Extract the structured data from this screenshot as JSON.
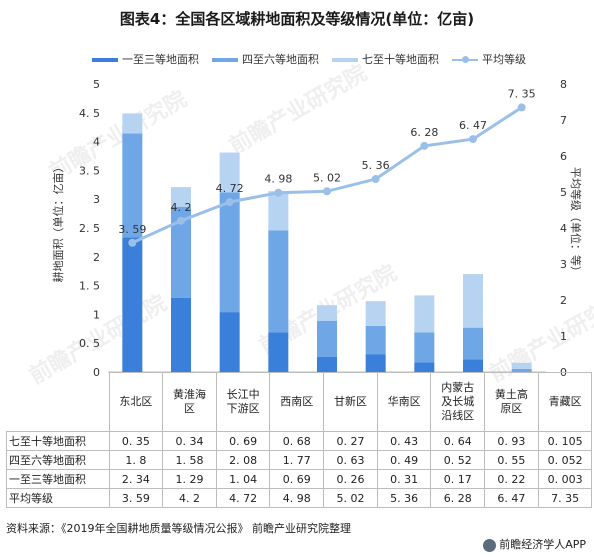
{
  "title": "图表4：全国各区域耕地面积及等级情况(单位：亿亩)",
  "legend": [
    {
      "label": "一至三等地面积",
      "color": "#3a7fd9"
    },
    {
      "label": "四至六等地面积",
      "color": "#6ea6e6"
    },
    {
      "label": "七至十等地面积",
      "color": "#b7d3f2"
    },
    {
      "label": "平均等级",
      "color": "#9ac0ea"
    }
  ],
  "chart_data": {
    "type": "bar",
    "stacked": true,
    "categories": [
      "东北区",
      "黄淮海区",
      "长江中下游区",
      "西南区",
      "甘新区",
      "华南区",
      "内蒙古及长城沿线区",
      "黄土高原区",
      "青藏区"
    ],
    "category_lines": [
      [
        "东北区"
      ],
      [
        "黄淮海",
        "区"
      ],
      [
        "长江中",
        "下游区"
      ],
      [
        "西南区"
      ],
      [
        "甘新区"
      ],
      [
        "华南区"
      ],
      [
        "内蒙古",
        "及长城",
        "沿线区"
      ],
      [
        "黄土高",
        "原区"
      ],
      [
        "青藏区"
      ]
    ],
    "series": [
      {
        "name": "一至三等地面积",
        "color": "#3a7fd9",
        "values": [
          2.34,
          1.29,
          1.04,
          0.69,
          0.26,
          0.31,
          0.17,
          0.22,
          0.003
        ]
      },
      {
        "name": "四至六等地面积",
        "color": "#6ea6e6",
        "values": [
          1.8,
          1.58,
          2.08,
          1.77,
          0.63,
          0.49,
          0.52,
          0.55,
          0.052
        ]
      },
      {
        "name": "七至十等地面积",
        "color": "#b7d3f2",
        "values": [
          0.35,
          0.34,
          0.69,
          0.68,
          0.27,
          0.43,
          0.64,
          0.93,
          0.105
        ]
      }
    ],
    "line_series": {
      "name": "平均等级",
      "color": "#9ac0ea",
      "values": [
        3.59,
        4.2,
        4.72,
        4.98,
        5.02,
        5.36,
        6.28,
        6.47,
        7.35
      ]
    },
    "ylabel": "耕地面积（单位：亿亩）",
    "y2label": "平均等级（单位：等）",
    "ylim": [
      0,
      5
    ],
    "y2lim": [
      0,
      8
    ],
    "yticks": [
      "0",
      "0. 5",
      "1",
      "1. 5",
      "2",
      "2. 5",
      "3",
      "3. 5",
      "4",
      "4. 5",
      "5"
    ],
    "y2ticks": [
      "0",
      "1",
      "2",
      "3",
      "4",
      "5",
      "6",
      "7",
      "8"
    ],
    "line_labels": [
      "3. 59",
      "4. 2",
      "4. 72",
      "4. 98",
      "5. 02",
      "5. 36",
      "6. 28",
      "6. 47",
      "7. 35"
    ],
    "table": {
      "rows": [
        {
          "label": "七至十等地面积",
          "cells": [
            "0. 35",
            "0. 34",
            "0. 69",
            "0. 68",
            "0. 27",
            "0. 43",
            "0. 64",
            "0. 93",
            "0. 105"
          ]
        },
        {
          "label": "四至六等地面积",
          "cells": [
            "1. 8",
            "1. 58",
            "2. 08",
            "1. 77",
            "0. 63",
            "0. 49",
            "0. 52",
            "0. 55",
            "0. 052"
          ]
        },
        {
          "label": "一至三等地面积",
          "cells": [
            "2. 34",
            "1. 29",
            "1. 04",
            "0. 69",
            "0. 26",
            "0. 31",
            "0. 17",
            "0. 22",
            "0. 003"
          ]
        },
        {
          "label": "平均等级",
          "cells": [
            "3. 59",
            "4. 2",
            "4. 72",
            "4. 98",
            "5. 02",
            "5. 36",
            "6. 28",
            "6. 47",
            "7. 35"
          ]
        }
      ]
    }
  },
  "source": "资料来源：《2019年全国耕地质量等级情况公报》 前瞻产业研究院整理",
  "brand": "前瞻经济学人APP",
  "watermarks": [
    "前瞻产业研究院",
    "前瞻产业研究院",
    "前瞻产业研究院",
    "前瞻产业研究院",
    "前瞻产业研究院"
  ]
}
